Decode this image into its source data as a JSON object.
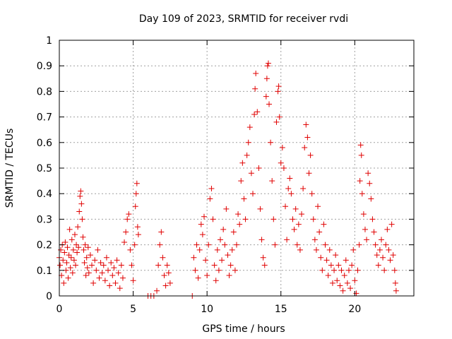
{
  "chart_data": {
    "type": "scatter",
    "title": "Day 109 of 2023, SRMTID for receiver rvdi",
    "xlabel": "GPS time / hours",
    "ylabel": "SRMTID / TECUs",
    "xlim": [
      0,
      24
    ],
    "ylim": [
      0,
      1
    ],
    "x_ticks": [
      0,
      5,
      10,
      15,
      20
    ],
    "x_tick_labels": [
      "0",
      "5",
      "10",
      "15",
      "20"
    ],
    "y_ticks": [
      0,
      0.1,
      0.2,
      0.3,
      0.4,
      0.5,
      0.6,
      0.7,
      0.8,
      0.9,
      1
    ],
    "y_tick_labels": [
      "0",
      "0.1",
      "0.2",
      "0.3",
      "0.4",
      "0.5",
      "0.6",
      "0.7",
      "0.8",
      "0.9",
      "1"
    ],
    "grid": true,
    "marker": "+",
    "series_color": "#e00000",
    "series": [
      {
        "name": "SRMTID",
        "points": [
          [
            0.0,
            0.15
          ],
          [
            0.05,
            0.12
          ],
          [
            0.1,
            0.18
          ],
          [
            0.15,
            0.08
          ],
          [
            0.2,
            0.2
          ],
          [
            0.25,
            0.14
          ],
          [
            0.3,
            0.05
          ],
          [
            0.35,
            0.17
          ],
          [
            0.4,
            0.21
          ],
          [
            0.45,
            0.1
          ],
          [
            0.5,
            0.13
          ],
          [
            0.55,
            0.19
          ],
          [
            0.6,
            0.07
          ],
          [
            0.65,
            0.16
          ],
          [
            0.7,
            0.26
          ],
          [
            0.75,
            0.11
          ],
          [
            0.8,
            0.15
          ],
          [
            0.85,
            0.22
          ],
          [
            0.9,
            0.09
          ],
          [
            0.95,
            0.18
          ],
          [
            1.0,
            0.14
          ],
          [
            1.05,
            0.24
          ],
          [
            1.1,
            0.12
          ],
          [
            1.15,
            0.2
          ],
          [
            1.2,
            0.17
          ],
          [
            1.25,
            0.27
          ],
          [
            1.3,
            0.19
          ],
          [
            1.35,
            0.33
          ],
          [
            1.4,
            0.39
          ],
          [
            1.45,
            0.41
          ],
          [
            1.5,
            0.36
          ],
          [
            1.55,
            0.3
          ],
          [
            1.6,
            0.23
          ],
          [
            1.65,
            0.18
          ],
          [
            1.7,
            0.13
          ],
          [
            1.75,
            0.2
          ],
          [
            1.8,
            0.08
          ],
          [
            1.85,
            0.15
          ],
          [
            1.9,
            0.11
          ],
          [
            1.95,
            0.19
          ],
          [
            2.0,
            0.09
          ],
          [
            2.1,
            0.16
          ],
          [
            2.2,
            0.12
          ],
          [
            2.3,
            0.05
          ],
          [
            2.4,
            0.14
          ],
          [
            2.5,
            0.1
          ],
          [
            2.6,
            0.18
          ],
          [
            2.7,
            0.07
          ],
          [
            2.8,
            0.13
          ],
          [
            2.9,
            0.09
          ],
          [
            3.0,
            0.12
          ],
          [
            3.1,
            0.06
          ],
          [
            3.2,
            0.15
          ],
          [
            3.3,
            0.1
          ],
          [
            3.4,
            0.04
          ],
          [
            3.5,
            0.13
          ],
          [
            3.6,
            0.08
          ],
          [
            3.7,
            0.11
          ],
          [
            3.8,
            0.05
          ],
          [
            3.9,
            0.14
          ],
          [
            4.0,
            0.09
          ],
          [
            4.1,
            0.03
          ],
          [
            4.2,
            0.12
          ],
          [
            4.3,
            0.07
          ],
          [
            4.4,
            0.21
          ],
          [
            4.5,
            0.25
          ],
          [
            4.6,
            0.3
          ],
          [
            4.7,
            0.32
          ],
          [
            4.8,
            0.18
          ],
          [
            4.9,
            0.12
          ],
          [
            5.0,
            0.06
          ],
          [
            5.1,
            0.2
          ],
          [
            5.15,
            0.35
          ],
          [
            5.2,
            0.4
          ],
          [
            5.25,
            0.44
          ],
          [
            5.3,
            0.27
          ],
          [
            5.35,
            0.24
          ],
          [
            6.0,
            0.0
          ],
          [
            6.2,
            0.0
          ],
          [
            6.4,
            0.0
          ],
          [
            6.6,
            0.02
          ],
          [
            6.7,
            0.12
          ],
          [
            6.8,
            0.2
          ],
          [
            6.9,
            0.25
          ],
          [
            7.0,
            0.15
          ],
          [
            7.1,
            0.08
          ],
          [
            7.2,
            0.04
          ],
          [
            7.3,
            0.12
          ],
          [
            7.4,
            0.09
          ],
          [
            7.5,
            0.05
          ],
          [
            9.0,
            0.0
          ],
          [
            9.1,
            0.15
          ],
          [
            9.2,
            0.1
          ],
          [
            9.3,
            0.2
          ],
          [
            9.4,
            0.07
          ],
          [
            9.5,
            0.18
          ],
          [
            9.6,
            0.28
          ],
          [
            9.7,
            0.24
          ],
          [
            9.8,
            0.31
          ],
          [
            9.9,
            0.14
          ],
          [
            10.0,
            0.08
          ],
          [
            10.1,
            0.2
          ],
          [
            10.2,
            0.38
          ],
          [
            10.3,
            0.42
          ],
          [
            10.4,
            0.3
          ],
          [
            10.5,
            0.12
          ],
          [
            10.6,
            0.06
          ],
          [
            10.7,
            0.18
          ],
          [
            10.8,
            0.1
          ],
          [
            10.9,
            0.22
          ],
          [
            11.0,
            0.14
          ],
          [
            11.1,
            0.26
          ],
          [
            11.2,
            0.2
          ],
          [
            11.3,
            0.34
          ],
          [
            11.4,
            0.16
          ],
          [
            11.5,
            0.08
          ],
          [
            11.6,
            0.12
          ],
          [
            11.7,
            0.18
          ],
          [
            11.8,
            0.25
          ],
          [
            11.9,
            0.1
          ],
          [
            12.0,
            0.2
          ],
          [
            12.1,
            0.32
          ],
          [
            12.2,
            0.28
          ],
          [
            12.3,
            0.45
          ],
          [
            12.4,
            0.52
          ],
          [
            12.5,
            0.38
          ],
          [
            12.6,
            0.3
          ],
          [
            12.7,
            0.55
          ],
          [
            12.8,
            0.6
          ],
          [
            12.9,
            0.66
          ],
          [
            13.0,
            0.48
          ],
          [
            13.1,
            0.4
          ],
          [
            13.2,
            0.71
          ],
          [
            13.25,
            0.81
          ],
          [
            13.3,
            0.87
          ],
          [
            13.4,
            0.72
          ],
          [
            13.5,
            0.5
          ],
          [
            13.6,
            0.34
          ],
          [
            13.7,
            0.22
          ],
          [
            13.8,
            0.15
          ],
          [
            13.9,
            0.12
          ],
          [
            14.0,
            0.78
          ],
          [
            14.05,
            0.85
          ],
          [
            14.1,
            0.9
          ],
          [
            14.15,
            0.91
          ],
          [
            14.2,
            0.75
          ],
          [
            14.3,
            0.6
          ],
          [
            14.4,
            0.45
          ],
          [
            14.5,
            0.3
          ],
          [
            14.6,
            0.2
          ],
          [
            14.7,
            0.68
          ],
          [
            14.8,
            0.8
          ],
          [
            14.85,
            0.82
          ],
          [
            14.9,
            0.7
          ],
          [
            15.0,
            0.52
          ],
          [
            15.1,
            0.58
          ],
          [
            15.2,
            0.5
          ],
          [
            15.3,
            0.35
          ],
          [
            15.4,
            0.22
          ],
          [
            15.5,
            0.42
          ],
          [
            15.6,
            0.46
          ],
          [
            15.7,
            0.4
          ],
          [
            15.8,
            0.3
          ],
          [
            15.9,
            0.26
          ],
          [
            16.0,
            0.34
          ],
          [
            16.1,
            0.2
          ],
          [
            16.2,
            0.28
          ],
          [
            16.3,
            0.18
          ],
          [
            16.4,
            0.32
          ],
          [
            16.5,
            0.42
          ],
          [
            16.6,
            0.58
          ],
          [
            16.7,
            0.67
          ],
          [
            16.8,
            0.62
          ],
          [
            16.9,
            0.48
          ],
          [
            17.0,
            0.55
          ],
          [
            17.1,
            0.4
          ],
          [
            17.2,
            0.3
          ],
          [
            17.3,
            0.22
          ],
          [
            17.4,
            0.18
          ],
          [
            17.5,
            0.35
          ],
          [
            17.6,
            0.25
          ],
          [
            17.7,
            0.15
          ],
          [
            17.8,
            0.1
          ],
          [
            17.9,
            0.28
          ],
          [
            18.0,
            0.2
          ],
          [
            18.1,
            0.14
          ],
          [
            18.2,
            0.08
          ],
          [
            18.3,
            0.18
          ],
          [
            18.4,
            0.12
          ],
          [
            18.5,
            0.05
          ],
          [
            18.6,
            0.1
          ],
          [
            18.7,
            0.16
          ],
          [
            18.8,
            0.06
          ],
          [
            18.9,
            0.12
          ],
          [
            19.0,
            0.04
          ],
          [
            19.1,
            0.1
          ],
          [
            19.2,
            0.02
          ],
          [
            19.3,
            0.08
          ],
          [
            19.4,
            0.14
          ],
          [
            19.5,
            0.05
          ],
          [
            19.6,
            0.1
          ],
          [
            19.7,
            0.03
          ],
          [
            19.8,
            0.12
          ],
          [
            19.9,
            0.18
          ],
          [
            20.0,
            0.06
          ],
          [
            20.1,
            0.01
          ],
          [
            20.2,
            0.1
          ],
          [
            20.3,
            0.2
          ],
          [
            20.35,
            0.45
          ],
          [
            20.4,
            0.59
          ],
          [
            20.45,
            0.55
          ],
          [
            20.5,
            0.4
          ],
          [
            20.6,
            0.32
          ],
          [
            20.7,
            0.26
          ],
          [
            20.8,
            0.22
          ],
          [
            20.9,
            0.48
          ],
          [
            21.0,
            0.44
          ],
          [
            21.1,
            0.38
          ],
          [
            21.2,
            0.3
          ],
          [
            21.3,
            0.25
          ],
          [
            21.4,
            0.2
          ],
          [
            21.5,
            0.16
          ],
          [
            21.6,
            0.12
          ],
          [
            21.7,
            0.18
          ],
          [
            21.8,
            0.22
          ],
          [
            21.9,
            0.15
          ],
          [
            22.0,
            0.1
          ],
          [
            22.1,
            0.2
          ],
          [
            22.2,
            0.26
          ],
          [
            22.3,
            0.18
          ],
          [
            22.4,
            0.14
          ],
          [
            22.5,
            0.28
          ],
          [
            22.6,
            0.16
          ],
          [
            22.7,
            0.1
          ],
          [
            22.75,
            0.05
          ],
          [
            22.8,
            0.02
          ]
        ]
      }
    ]
  }
}
